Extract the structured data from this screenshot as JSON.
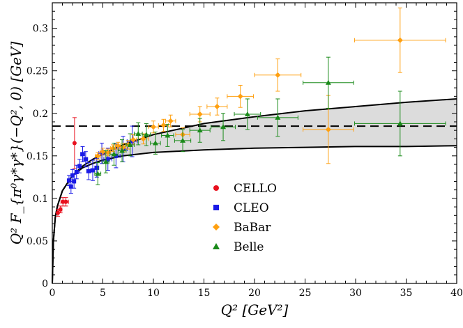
{
  "chart_data": {
    "type": "scatter",
    "title": "",
    "xlabel": "Q²  [GeV²]",
    "ylabel": "Q² F_{π⁰γ*γ*}(−Q², 0)  [GeV]",
    "xlim": [
      0,
      40
    ],
    "ylim": [
      0,
      0.33
    ],
    "xticks": [
      0,
      5,
      10,
      15,
      20,
      25,
      30,
      35,
      40
    ],
    "yticks": [
      0,
      0.05,
      0.1,
      0.15,
      0.2,
      0.25,
      0.3
    ],
    "xtick_labels": [
      "0",
      "5",
      "10",
      "15",
      "20",
      "25",
      "30",
      "35",
      "40"
    ],
    "ytick_labels": [
      "0",
      "0.05",
      "0.1",
      "0.15",
      "0.2",
      "0.25",
      "0.3"
    ],
    "grid": false,
    "legend_position": "center",
    "asymptote": {
      "y": 0.185,
      "style": "dashed"
    },
    "band": {
      "description": "shaded theory band between two curves",
      "color": "#dcdcdc",
      "upper": [
        [
          0.1,
          0.049
        ],
        [
          0.3,
          0.078
        ],
        [
          0.5,
          0.091
        ],
        [
          1,
          0.109
        ],
        [
          2,
          0.127
        ],
        [
          3,
          0.138
        ],
        [
          4,
          0.146
        ],
        [
          5,
          0.152
        ],
        [
          7,
          0.163
        ],
        [
          10,
          0.175
        ],
        [
          15,
          0.188
        ],
        [
          20,
          0.196
        ],
        [
          25,
          0.203
        ],
        [
          30,
          0.208
        ],
        [
          35,
          0.213
        ],
        [
          40,
          0.217
        ]
      ],
      "lower": [
        [
          0.1,
          0.049
        ],
        [
          0.3,
          0.078
        ],
        [
          0.5,
          0.091
        ],
        [
          1,
          0.109
        ],
        [
          2,
          0.127
        ],
        [
          3,
          0.136
        ],
        [
          4,
          0.141
        ],
        [
          5,
          0.145
        ],
        [
          7,
          0.15
        ],
        [
          10,
          0.154
        ],
        [
          15,
          0.157
        ],
        [
          20,
          0.159
        ],
        [
          25,
          0.16
        ],
        [
          30,
          0.161
        ],
        [
          35,
          0.161
        ],
        [
          40,
          0.162
        ]
      ]
    },
    "series": [
      {
        "name": "CELLO",
        "color": "#e8101e",
        "marker": "circle",
        "points": [
          {
            "x": 0.55,
            "y": 0.083,
            "yerr": 0.004,
            "xerr": 0.1
          },
          {
            "x": 0.8,
            "y": 0.087,
            "yerr": 0.004,
            "xerr": 0.15
          },
          {
            "x": 1.05,
            "y": 0.096,
            "yerr": 0.005,
            "xerr": 0.2
          },
          {
            "x": 1.35,
            "y": 0.096,
            "yerr": 0.005,
            "xerr": 0.25
          },
          {
            "x": 2.2,
            "y": 0.165,
            "yerr": 0.03,
            "xerr": 0.0
          }
        ]
      },
      {
        "name": "CLEO",
        "color": "#1a1ae6",
        "marker": "square",
        "points": [
          {
            "x": 1.65,
            "y": 0.121,
            "yerr": 0.006,
            "xerr": 0.1
          },
          {
            "x": 1.85,
            "y": 0.114,
            "yerr": 0.008,
            "xerr": 0.1
          },
          {
            "x": 2.0,
            "y": 0.127,
            "yerr": 0.007,
            "xerr": 0.1
          },
          {
            "x": 2.15,
            "y": 0.12,
            "yerr": 0.008,
            "xerr": 0.1
          },
          {
            "x": 2.4,
            "y": 0.131,
            "yerr": 0.008,
            "xerr": 0.1
          },
          {
            "x": 2.7,
            "y": 0.138,
            "yerr": 0.008,
            "xerr": 0.1
          },
          {
            "x": 3.0,
            "y": 0.152,
            "yerr": 0.009,
            "xerr": 0.2
          },
          {
            "x": 3.3,
            "y": 0.146,
            "yerr": 0.009,
            "xerr": 0.2
          },
          {
            "x": 3.6,
            "y": 0.132,
            "yerr": 0.01,
            "xerr": 0.2
          },
          {
            "x": 4.0,
            "y": 0.133,
            "yerr": 0.012,
            "xerr": 0.2
          },
          {
            "x": 4.4,
            "y": 0.136,
            "yerr": 0.011,
            "xerr": 0.2
          },
          {
            "x": 4.9,
            "y": 0.153,
            "yerr": 0.012,
            "xerr": 0.3
          },
          {
            "x": 5.5,
            "y": 0.146,
            "yerr": 0.013,
            "xerr": 0.4
          },
          {
            "x": 6.3,
            "y": 0.15,
            "yerr": 0.014,
            "xerr": 0.4
          },
          {
            "x": 7.0,
            "y": 0.158,
            "yerr": 0.015,
            "xerr": 0.4
          },
          {
            "x": 7.9,
            "y": 0.167,
            "yerr": 0.018,
            "xerr": 0.5
          }
        ]
      },
      {
        "name": "BaBar",
        "color": "#ffa010",
        "marker": "diamond",
        "points": [
          {
            "x": 4.5,
            "y": 0.15,
            "yerr": 0.004,
            "xerr": 0.25
          },
          {
            "x": 5.0,
            "y": 0.155,
            "yerr": 0.004,
            "xerr": 0.25
          },
          {
            "x": 5.5,
            "y": 0.154,
            "yerr": 0.004,
            "xerr": 0.25
          },
          {
            "x": 6.0,
            "y": 0.159,
            "yerr": 0.004,
            "xerr": 0.25
          },
          {
            "x": 6.5,
            "y": 0.162,
            "yerr": 0.004,
            "xerr": 0.25
          },
          {
            "x": 7.0,
            "y": 0.16,
            "yerr": 0.005,
            "xerr": 0.25
          },
          {
            "x": 7.5,
            "y": 0.163,
            "yerr": 0.005,
            "xerr": 0.25
          },
          {
            "x": 8.0,
            "y": 0.169,
            "yerr": 0.006,
            "xerr": 0.3
          },
          {
            "x": 9.0,
            "y": 0.17,
            "yerr": 0.006,
            "xerr": 0.5
          },
          {
            "x": 10.0,
            "y": 0.184,
            "yerr": 0.007,
            "xerr": 0.5
          },
          {
            "x": 11.0,
            "y": 0.186,
            "yerr": 0.007,
            "xerr": 0.5
          },
          {
            "x": 11.7,
            "y": 0.191,
            "yerr": 0.007,
            "xerr": 0.5
          },
          {
            "x": 12.9,
            "y": 0.175,
            "yerr": 0.008,
            "xerr": 0.7
          },
          {
            "x": 14.6,
            "y": 0.199,
            "yerr": 0.009,
            "xerr": 1.0
          },
          {
            "x": 16.3,
            "y": 0.208,
            "yerr": 0.01,
            "xerr": 1.0
          },
          {
            "x": 18.6,
            "y": 0.22,
            "yerr": 0.013,
            "xerr": 1.3
          },
          {
            "x": 22.3,
            "y": 0.245,
            "yerr": 0.019,
            "xerr": 2.3
          },
          {
            "x": 27.3,
            "y": 0.181,
            "yerr": 0.04,
            "xerr": 2.5
          },
          {
            "x": 34.4,
            "y": 0.286,
            "yerr": 0.038,
            "xerr": 4.5
          }
        ]
      },
      {
        "name": "Belle",
        "color": "#1a8a1a",
        "marker": "triangle",
        "points": [
          {
            "x": 4.5,
            "y": 0.129,
            "yerr": 0.013,
            "xerr": 0.3
          },
          {
            "x": 5.3,
            "y": 0.143,
            "yerr": 0.013,
            "xerr": 0.3
          },
          {
            "x": 6.1,
            "y": 0.152,
            "yerr": 0.013,
            "xerr": 0.4
          },
          {
            "x": 6.9,
            "y": 0.156,
            "yerr": 0.013,
            "xerr": 0.4
          },
          {
            "x": 7.7,
            "y": 0.163,
            "yerr": 0.013,
            "xerr": 0.4
          },
          {
            "x": 8.5,
            "y": 0.176,
            "yerr": 0.013,
            "xerr": 0.4
          },
          {
            "x": 9.3,
            "y": 0.175,
            "yerr": 0.013,
            "xerr": 0.4
          },
          {
            "x": 10.2,
            "y": 0.165,
            "yerr": 0.013,
            "xerr": 0.5
          },
          {
            "x": 11.4,
            "y": 0.174,
            "yerr": 0.013,
            "xerr": 0.6
          },
          {
            "x": 12.9,
            "y": 0.168,
            "yerr": 0.013,
            "xerr": 0.8
          },
          {
            "x": 14.6,
            "y": 0.18,
            "yerr": 0.014,
            "xerr": 1.0
          },
          {
            "x": 16.9,
            "y": 0.184,
            "yerr": 0.016,
            "xerr": 1.2
          },
          {
            "x": 19.3,
            "y": 0.199,
            "yerr": 0.018,
            "xerr": 1.3
          },
          {
            "x": 22.3,
            "y": 0.195,
            "yerr": 0.022,
            "xerr": 2.0
          },
          {
            "x": 27.3,
            "y": 0.236,
            "yerr": 0.03,
            "xerr": 2.5
          },
          {
            "x": 34.4,
            "y": 0.188,
            "yerr": 0.038,
            "xerr": 4.5
          }
        ]
      }
    ]
  }
}
